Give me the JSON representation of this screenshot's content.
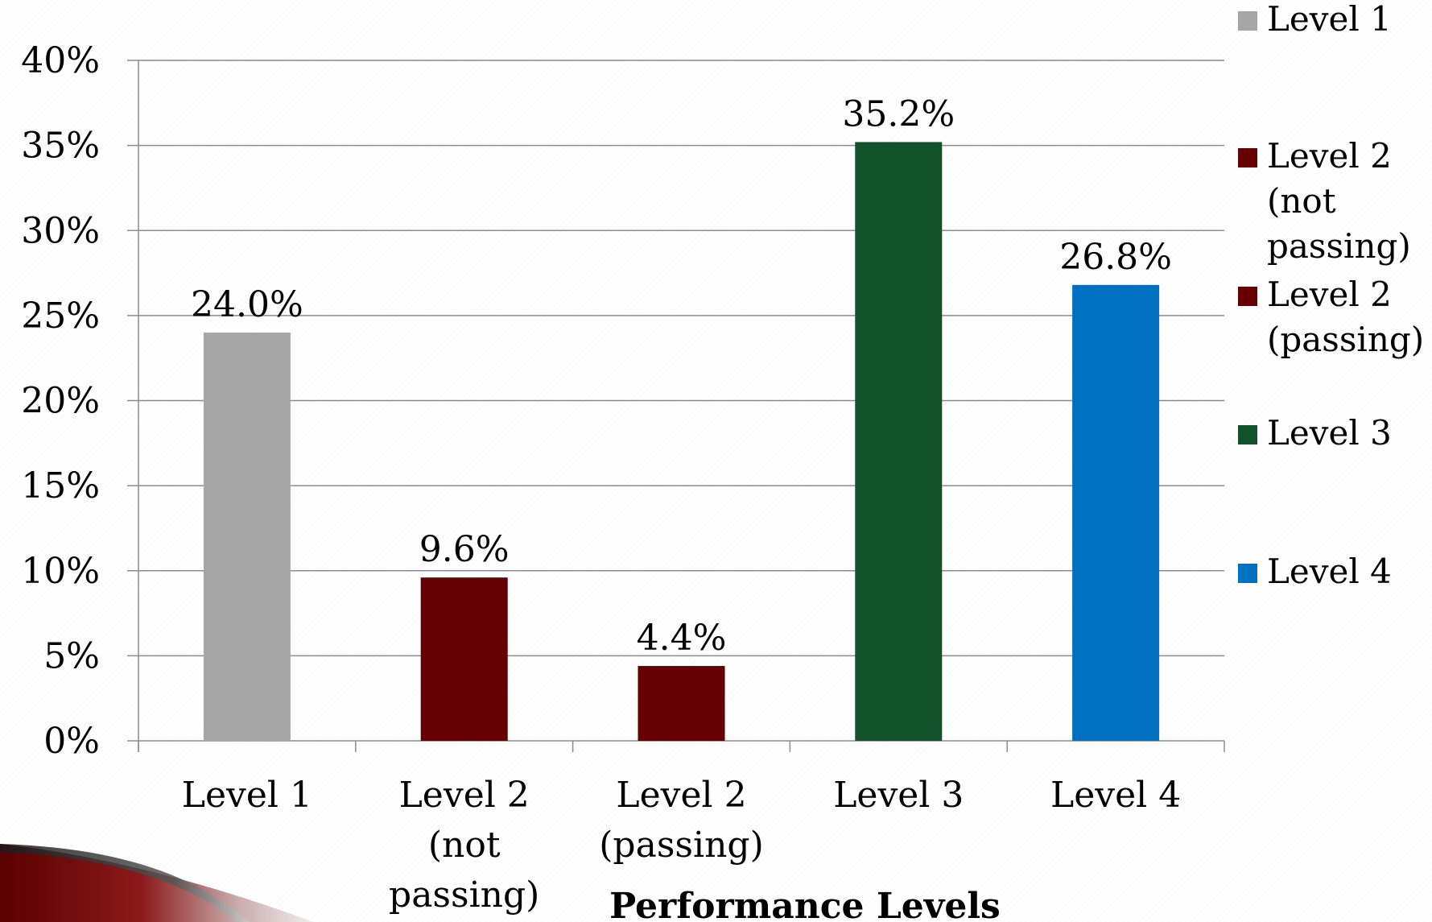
{
  "chart_data": {
    "type": "bar",
    "title": "",
    "xlabel": "Performance Levels",
    "ylabel": "",
    "ylim": [
      0,
      40
    ],
    "y_ticks": [
      "0%",
      "5%",
      "10%",
      "15%",
      "20%",
      "25%",
      "30%",
      "35%",
      "40%"
    ],
    "y_tick_values": [
      0,
      5,
      10,
      15,
      20,
      25,
      30,
      35,
      40
    ],
    "grid": true,
    "legend_position": "right",
    "categories": [
      [
        "Level 1"
      ],
      [
        "Level 2",
        "(not",
        "passing)"
      ],
      [
        "Level 2",
        "(passing)"
      ],
      [
        "Level 3"
      ],
      [
        "Level 4"
      ]
    ],
    "values": [
      24.0,
      9.6,
      4.4,
      35.2,
      26.8
    ],
    "value_labels": [
      "24.0%",
      "9.6%",
      "4.4%",
      "35.2%",
      "26.8%"
    ],
    "colors": [
      "#a6a6a6",
      "#660000",
      "#660000",
      "#11522a",
      "#0070c0"
    ],
    "legend": [
      {
        "lines": [
          "Level 1"
        ],
        "color": "#a6a6a6"
      },
      {
        "lines": [
          "Level 2",
          "(not",
          "passing)"
        ],
        "color": "#660000"
      },
      {
        "lines": [
          "Level 2",
          "(passing)"
        ],
        "color": "#660000"
      },
      {
        "lines": [
          "Level 3"
        ],
        "color": "#11522a"
      },
      {
        "lines": [
          "Level 4"
        ],
        "color": "#0070c0"
      }
    ]
  },
  "decor": {
    "accent_dark": "#5a0000",
    "accent_light": "#d9d9d9"
  }
}
